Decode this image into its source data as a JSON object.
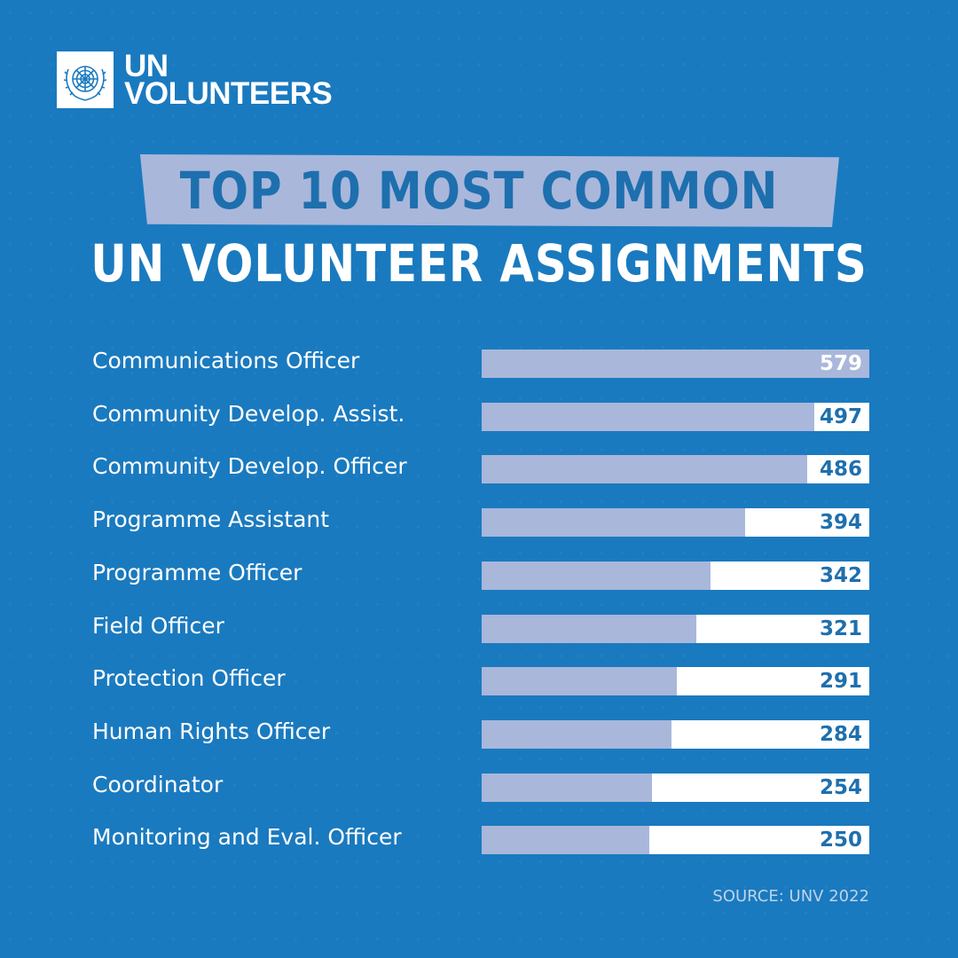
{
  "brand": {
    "name_line1": "UN",
    "name_line2": "VOLUNTEERS",
    "emblem_icon": "un-emblem-icon"
  },
  "colors": {
    "background": "#1a7abf",
    "bar_fill": "#a9b7db",
    "bar_track": "#ffffff",
    "value_text": "#1e6fae"
  },
  "chart_data": {
    "type": "bar",
    "orientation": "horizontal",
    "title_line1": "TOP 10 MOST COMMON",
    "title_line2": "UN VOLUNTEER ASSIGNMENTS",
    "categories": [
      "Communications Officer",
      "Community Develop. Assist.",
      "Community Develop. Officer",
      "Programme Assistant",
      "Programme Officer",
      "Field Officer",
      "Protection Officer",
      "Human Rights Officer",
      "Coordinator",
      "Monitoring and Eval. Officer"
    ],
    "values": [
      579,
      497,
      486,
      394,
      342,
      321,
      291,
      284,
      254,
      250
    ],
    "xlim": [
      0,
      579
    ],
    "grid": false,
    "legend": "none",
    "source": "SOURCE: UNV 2022"
  }
}
